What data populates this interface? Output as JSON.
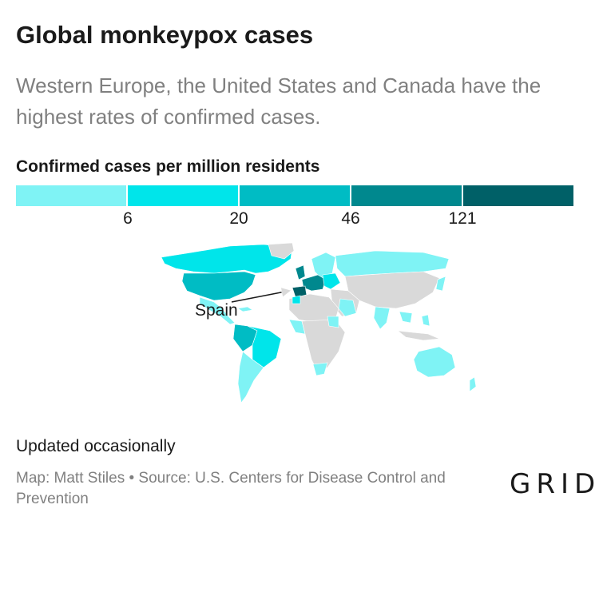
{
  "header": {
    "title": "Global monkeypox cases",
    "subtitle": "Western Europe, the United States and Canada have the highest rates of confirmed cases."
  },
  "legend": {
    "title": "Confirmed cases per million residents",
    "breaks": [
      "6",
      "20",
      "46",
      "121"
    ],
    "colors": [
      "#7ff3f5",
      "#00e5ea",
      "#00bcc4",
      "#00888e",
      "#006067"
    ]
  },
  "map": {
    "annotation": "Spain",
    "land_color": "#d9d9d9"
  },
  "footer": {
    "note": "Updated occasionally",
    "credit": "Map: Matt Stiles • Source: U.S. Centers for Disease Control and Prevention",
    "logo": "GRID"
  }
}
